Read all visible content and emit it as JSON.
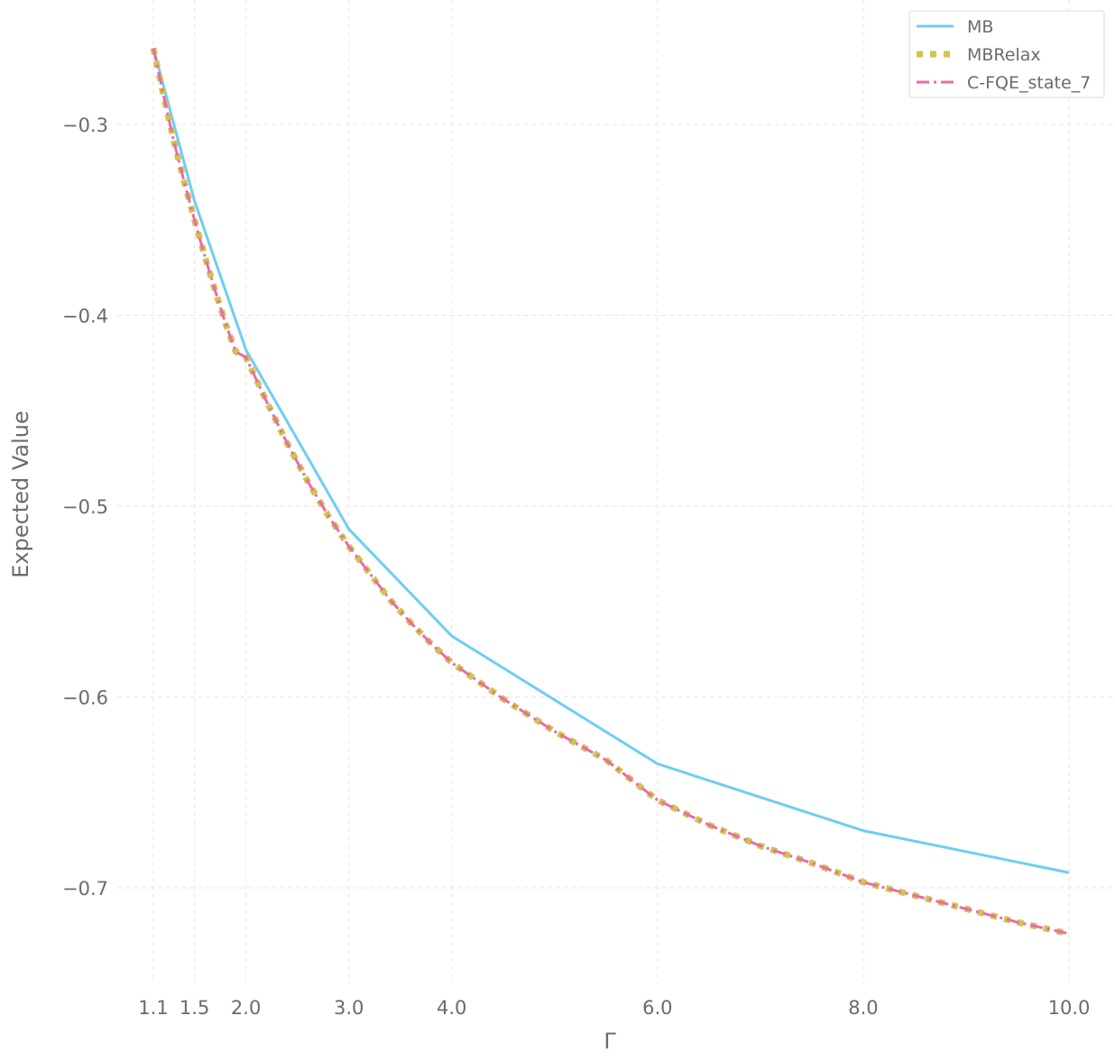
{
  "chart_data": {
    "type": "line",
    "xlabel": "Γ",
    "ylabel": "Expected Value",
    "xlim": [
      0.72,
      10.22
    ],
    "ylim": [
      -0.75,
      -0.247
    ],
    "x_ticks": [
      1.1,
      1.5,
      2.0,
      3.0,
      4.0,
      6.0,
      8.0,
      10.0
    ],
    "x_tick_labels": [
      "1.1",
      "1.5",
      "2.0",
      "3.0",
      "4.0",
      "6.0",
      "8.0",
      "10.0"
    ],
    "y_ticks": [
      -0.3,
      -0.4,
      -0.5,
      -0.6,
      -0.7
    ],
    "y_tick_labels": [
      "−0.3",
      "−0.4",
      "−0.5",
      "−0.6",
      "−0.7"
    ],
    "grid": true,
    "legend_position": "top-right",
    "series": [
      {
        "name": "MB",
        "color": "#6fcdf5",
        "style": "solid",
        "x": [
          1.1,
          1.5,
          2.0,
          3.0,
          4.0,
          6.0,
          8.0,
          10.0
        ],
        "y": [
          -0.26,
          -0.34,
          -0.418,
          -0.512,
          -0.568,
          -0.635,
          -0.67,
          -0.692
        ]
      },
      {
        "name": "MBRelax",
        "color": "#cfc54f",
        "style": "dotted",
        "x": [
          1.1,
          1.2,
          1.3,
          1.4,
          1.5,
          1.6,
          1.7,
          1.8,
          1.9,
          2.0,
          2.2,
          2.4,
          2.6,
          2.8,
          3.0,
          3.2,
          3.4,
          3.6,
          3.8,
          4.0,
          4.5,
          5.0,
          5.5,
          6.0,
          6.5,
          7.0,
          7.5,
          8.0,
          8.5,
          9.0,
          9.5,
          10.0
        ],
        "y": [
          -0.26,
          -0.285,
          -0.309,
          -0.33,
          -0.35,
          -0.369,
          -0.387,
          -0.404,
          -0.419,
          -0.422,
          -0.445,
          -0.467,
          -0.487,
          -0.505,
          -0.521,
          -0.535,
          -0.549,
          -0.561,
          -0.572,
          -0.582,
          -0.601,
          -0.618,
          -0.633,
          -0.654,
          -0.667,
          -0.678,
          -0.687,
          -0.697,
          -0.704,
          -0.711,
          -0.718,
          -0.724
        ]
      },
      {
        "name": "C-FQE_state_7",
        "color": "#ec6aa6",
        "style": "dashdot",
        "x": [
          1.1,
          1.2,
          1.3,
          1.4,
          1.5,
          1.6,
          1.7,
          1.8,
          1.9,
          2.0,
          2.2,
          2.4,
          2.6,
          2.8,
          3.0,
          3.2,
          3.4,
          3.6,
          3.8,
          4.0,
          4.5,
          5.0,
          5.5,
          6.0,
          6.5,
          7.0,
          7.5,
          8.0,
          8.5,
          9.0,
          9.5,
          10.0
        ],
        "y": [
          -0.26,
          -0.285,
          -0.309,
          -0.33,
          -0.35,
          -0.369,
          -0.387,
          -0.404,
          -0.419,
          -0.422,
          -0.445,
          -0.467,
          -0.487,
          -0.505,
          -0.521,
          -0.535,
          -0.549,
          -0.561,
          -0.572,
          -0.582,
          -0.601,
          -0.618,
          -0.633,
          -0.654,
          -0.667,
          -0.678,
          -0.687,
          -0.697,
          -0.704,
          -0.711,
          -0.718,
          -0.724
        ]
      }
    ]
  }
}
